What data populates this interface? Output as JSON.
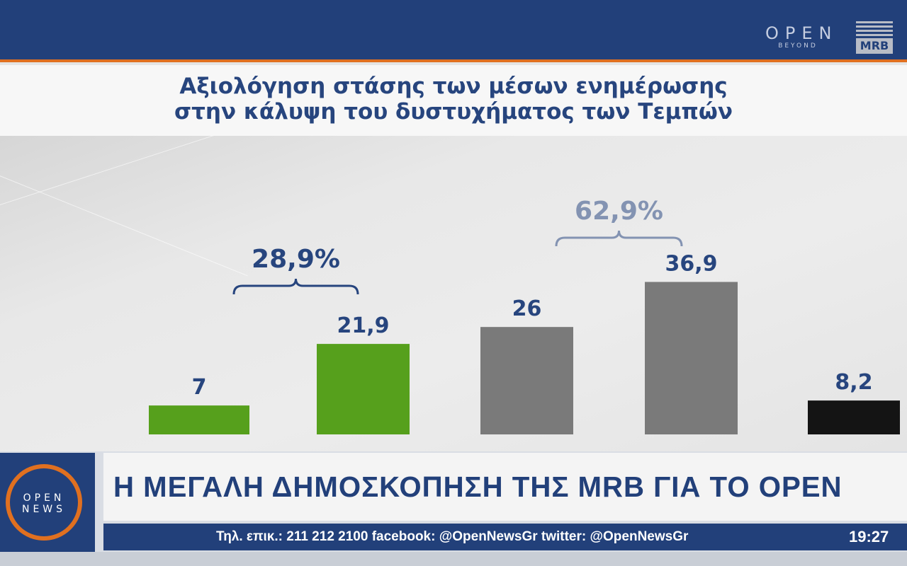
{
  "title": [
    "Αξιολόγηση στάσης των μέσων ενημέρωσης",
    "στην κάλυψη του δυστυχήματος των Τεμπών"
  ],
  "logos": {
    "open_beyond_word": "OPEN",
    "open_beyond_sub": "BEYOND",
    "mrb": "MRB",
    "open_news": [
      "OPEN",
      "NEWS"
    ]
  },
  "headline": "Η ΜΕΓΑΛΗ ΔΗΜΟΣΚΟΠΗΣΗ ΤΗΣ MRB ΓΙΑ ΤΟ OPEN",
  "ticker": "Τηλ. επικ.: 211 212 2100 facebook: @OpenNewsGr twitter: @OpenNewsGr",
  "clock": "19:27",
  "colors": {
    "green": "#56a01c",
    "gray": "#7a7a7a",
    "black": "#141414",
    "navy": "#22407a",
    "orange": "#e07020"
  },
  "chart_data": {
    "type": "bar",
    "title": "Αξιολόγηση στάσης των μέσων ενημέρωσης στην κάλυψη του δυστυχήματος των Τεμπών",
    "categories": [
      "",
      "",
      "",
      "",
      ""
    ],
    "values": [
      7,
      21.9,
      26,
      36.9,
      8.2
    ],
    "value_labels": [
      "7",
      "21,9",
      "26",
      "36,9",
      "8,2"
    ],
    "bar_colors": [
      "#56a01c",
      "#56a01c",
      "#7a7a7a",
      "#7a7a7a",
      "#141414"
    ],
    "ylim": [
      0,
      40
    ],
    "grid": false,
    "groups": [
      {
        "label": "28,9%",
        "bars": [
          0,
          1
        ],
        "color": "#27457e"
      },
      {
        "label": "62,9%",
        "bars": [
          2,
          3
        ],
        "color": "#8393b2"
      }
    ]
  }
}
